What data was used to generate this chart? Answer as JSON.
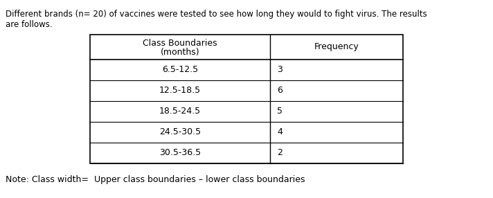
{
  "title_line1": "Different brands (n= 20) of vaccines were tested to see how long they would to fight virus. The results",
  "title_line2": "are follows.",
  "col1_header_line1": "Class Boundaries",
  "col1_header_line2": "(months)",
  "col2_header": "Frequency",
  "rows": [
    [
      "6.5-12.5",
      "3"
    ],
    [
      "12.5-18.5",
      "6"
    ],
    [
      "18.5-24.5",
      "5"
    ],
    [
      "24.5-30.5",
      "4"
    ],
    [
      "30.5-36.5",
      "2"
    ]
  ],
  "note": "Note: Class width=  Upper class boundaries – lower class boundaries",
  "bg_color": "#ffffff",
  "text_color": "#000000",
  "fig_width": 7.12,
  "fig_height": 2.86,
  "dpi": 100
}
